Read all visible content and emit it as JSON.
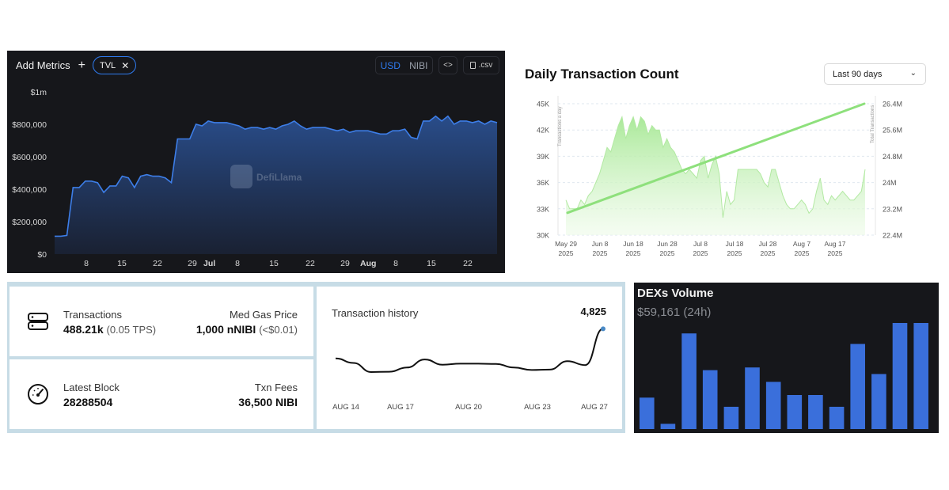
{
  "tvl_panel": {
    "add_metrics_label": "Add Metrics",
    "add_icon": "+",
    "chip_label": "TVL",
    "chip_close": "✕",
    "currency_usd": "USD",
    "currency_nibi": "NIBI",
    "embed_label": "<>",
    "csv_label": ".csv",
    "watermark": "DefiLlama"
  },
  "dtc_panel": {
    "title": "Daily Transaction Count",
    "range_label": "Last 90 days",
    "range_chevron": "⌄"
  },
  "stats": {
    "transactions_label": "Transactions",
    "transactions_value": "488.21k",
    "transactions_tps": "(0.05 TPS)",
    "gas_label": "Med Gas Price",
    "gas_value": "1,000 nNIBI",
    "gas_usd": "(<$0.01)",
    "block_label": "Latest Block",
    "block_value": "28288504",
    "fees_label": "Txn Fees",
    "fees_value": "36,500 NIBI",
    "history_title": "Transaction history",
    "history_value": "4,825"
  },
  "dex_panel": {
    "title": "DEXs Volume",
    "subtitle": "$59,161 (24h)"
  },
  "colors": {
    "dark_bg": "#16171b",
    "tvl_line": "#3d7ee8",
    "tvl_fill_top": "#2a4f8f",
    "dtc_line": "#8ee07c",
    "dtc_fill": "#b9f0a8",
    "dex_bar": "#3a6fdb",
    "accent_blue": "#2f7bf0"
  },
  "chart_data": [
    {
      "id": "tvl",
      "type": "area",
      "x_labels": [
        "8",
        "15",
        "22",
        "29",
        "Jul",
        "8",
        "15",
        "22",
        "29",
        "Aug",
        "8",
        "15",
        "22"
      ],
      "y_ticks": [
        "$0",
        "$200,000",
        "$400,000",
        "$600,000",
        "$800,000",
        "$1m"
      ],
      "ylim": [
        0,
        1000000
      ],
      "grid": false,
      "series": [
        {
          "values": [
            110000,
            110000,
            115000,
            410000,
            410000,
            450000,
            450000,
            440000,
            380000,
            420000,
            420000,
            480000,
            470000,
            410000,
            480000,
            490000,
            480000,
            480000,
            470000,
            440000,
            710000,
            710000,
            710000,
            800000,
            790000,
            820000,
            810000,
            810000,
            810000,
            800000,
            790000,
            770000,
            780000,
            780000,
            770000,
            780000,
            770000,
            790000,
            800000,
            820000,
            790000,
            770000,
            780000,
            780000,
            780000,
            770000,
            760000,
            770000,
            750000,
            760000,
            760000,
            760000,
            750000,
            740000,
            740000,
            760000,
            760000,
            770000,
            720000,
            710000,
            820000,
            820000,
            850000,
            820000,
            850000,
            800000,
            820000,
            820000,
            810000,
            820000,
            800000,
            820000,
            810000
          ]
        }
      ]
    },
    {
      "id": "daily_transactions",
      "type": "area",
      "x_labels": [
        "May 29",
        "Jun 8",
        "Jun 18",
        "Jun 28",
        "Jul 8",
        "Jul 18",
        "Jul 28",
        "Aug 7",
        "Aug 17"
      ],
      "x_sublabel": "2025",
      "y_ticks": [
        "30K",
        "33K",
        "36K",
        "39K",
        "42K",
        "45K"
      ],
      "y2_ticks": [
        "22.4M",
        "23.2M",
        "24M",
        "24.8M",
        "25.6M",
        "26.4M"
      ],
      "ylabel": "Transactions a day",
      "y2label": "Total Transactions",
      "ylim": [
        30000,
        45000
      ],
      "y2lim": [
        22400000,
        26400000
      ],
      "series": [
        {
          "name": "Transactions a day",
          "values": [
            34000,
            33000,
            33000,
            33000,
            34000,
            33500,
            34500,
            35000,
            36000,
            37000,
            38500,
            40000,
            39500,
            41000,
            42500,
            43500,
            41000,
            42500,
            43500,
            42000,
            43500,
            43000,
            41500,
            42500,
            42000,
            42000,
            40000,
            41000,
            40000,
            39500,
            38500,
            37500,
            37000,
            37500,
            37000,
            36500,
            38500,
            39000,
            36500,
            38000,
            39000,
            37000,
            32000,
            35000,
            33500,
            34000,
            37500,
            37500,
            37500,
            37500,
            37500,
            37500,
            37000,
            36000,
            35500,
            37500,
            37500,
            36000,
            34500,
            33500,
            33000,
            33000,
            33500,
            34000,
            33500,
            32500,
            33000,
            35000,
            36500,
            34000,
            33500,
            34500,
            34000,
            34500,
            35000,
            34500,
            34000,
            34000,
            34500,
            35000,
            37500
          ]
        },
        {
          "name": "Total Transactions",
          "x_range": [
            "May 29",
            "Aug 27"
          ],
          "values": [
            23200000,
            26400000
          ]
        }
      ]
    },
    {
      "id": "transaction_history",
      "type": "line",
      "x_labels": [
        "AUG 14",
        "AUG 17",
        "AUG 20",
        "AUG 23",
        "AUG 27"
      ],
      "series": [
        {
          "values": [
            3980,
            3850,
            3590,
            3600,
            3720,
            3950,
            3800,
            3830,
            3830,
            3820,
            3720,
            3650,
            3660,
            3900,
            3790,
            4825
          ]
        }
      ]
    },
    {
      "id": "dex_volume",
      "type": "bar",
      "values": [
        24,
        4,
        73,
        45,
        17,
        47,
        36,
        26,
        26,
        17,
        65,
        42,
        81,
        81
      ]
    }
  ]
}
